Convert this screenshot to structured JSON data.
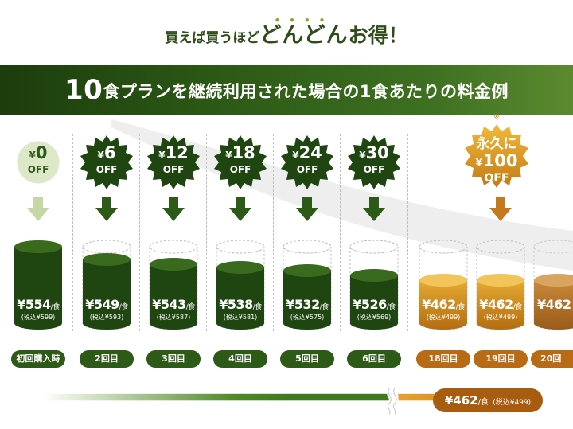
{
  "headline": {
    "lead": "買えば買うほど",
    "emphasis": "どんどん",
    "tail": "お得！"
  },
  "banner": {
    "count": "10",
    "text": "食プランを継続利用された場合の1食あたりの料金例"
  },
  "columns": [
    {
      "discount": "0",
      "off": "OFF",
      "price": "554",
      "per": "/食",
      "tax": "(税込¥599)",
      "label": "初回購入時"
    },
    {
      "discount": "6",
      "off": "OFF",
      "price": "549",
      "per": "/食",
      "tax": "(税込¥593)",
      "label": "2回目"
    },
    {
      "discount": "12",
      "off": "OFF",
      "price": "543",
      "per": "/食",
      "tax": "(税込¥587)",
      "label": "3回目"
    },
    {
      "discount": "18",
      "off": "OFF",
      "price": "538",
      "per": "/食",
      "tax": "(税込¥581)",
      "label": "4回目"
    },
    {
      "discount": "24",
      "off": "OFF",
      "price": "532",
      "per": "/食",
      "tax": "(税込¥575)",
      "label": "5回目"
    },
    {
      "discount": "30",
      "off": "OFF",
      "price": "526",
      "per": "/食",
      "tax": "(税込¥569)",
      "label": "6回目"
    },
    {
      "price": "462",
      "per": "/食",
      "tax": "(税込¥499)",
      "label": "18回目"
    },
    {
      "price": "462",
      "per": "/食",
      "tax": "(税込¥499)",
      "label": "19回目"
    },
    {
      "price": "462",
      "label": "20回"
    }
  ],
  "yen": "¥",
  "permanent_badge": {
    "note": "※",
    "text": "永久に",
    "discount": "100",
    "off": "OFF"
  },
  "bottom_pill": {
    "price": "462",
    "per": "/食",
    "tax": "(税込¥499)"
  },
  "colors": {
    "green_dark": "#1f4510",
    "green": "#2d5a16",
    "orange": "#b86a14",
    "gold": "#e0a72a"
  }
}
